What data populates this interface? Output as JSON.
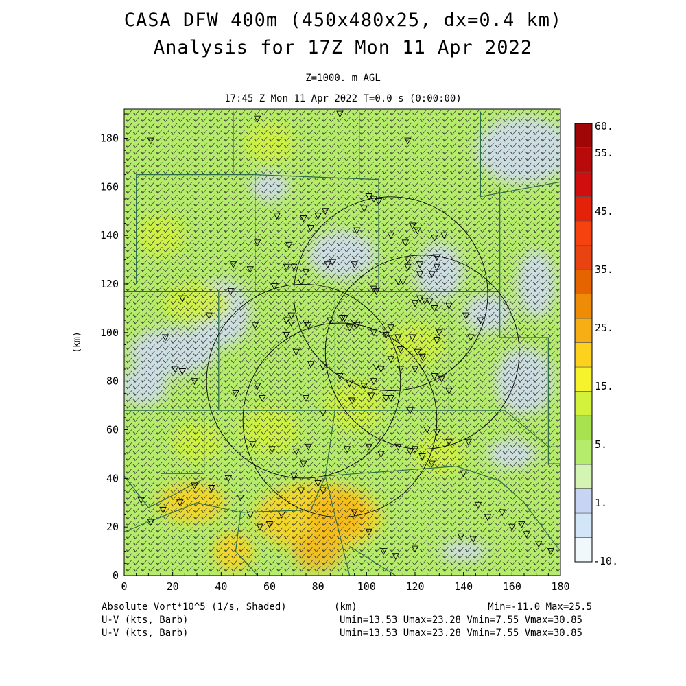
{
  "header": {
    "title_line1": "CASA DFW 400m (450x480x25, dx=0.4 km)",
    "title_line2": "Analysis for 17Z Mon 11 Apr 2022",
    "level": "Z=1000. m AGL",
    "time": "17:45 Z Mon 11 Apr 2022    T=0.0 s (0:00:00)"
  },
  "axes": {
    "x_ticks": [
      "0",
      "20",
      "40",
      "60",
      "80",
      "100",
      "120",
      "140",
      "160",
      "180"
    ],
    "y_ticks": [
      "0",
      "20",
      "40",
      "60",
      "80",
      "100",
      "120",
      "140",
      "160",
      "180"
    ],
    "x_label": "(km)",
    "y_label": "(km)",
    "x_range": [
      0,
      180
    ],
    "y_range": [
      0,
      192
    ]
  },
  "colorbar": {
    "labels": [
      "60.",
      "55.",
      "45.",
      "35.",
      "25.",
      "15.",
      "5.",
      "1.",
      "-10."
    ],
    "colors": [
      "#f0f8fc",
      "#d2e6f8",
      "#c8d4f4",
      "#d4f4b4",
      "#b6ec6c",
      "#a8e24e",
      "#d2f23c",
      "#f6f32c",
      "#fcd21e",
      "#f6ae14",
      "#ee8c08",
      "#e56400",
      "#e84412",
      "#f5420e",
      "#e4220a",
      "#d00e0e",
      "#b80a0a",
      "#a00606"
    ]
  },
  "footer": {
    "field_label": "Absolute Vort*10^5 (1/s, Shaded)",
    "field_unit": "(km)",
    "field_stats": "Min=-11.0 Max=25.5",
    "vector1_label": "U-V (kts, Barb)",
    "vector1_stats": "Umin=13.53 Umax=23.28  Vmin=7.55  Vmax=30.85",
    "vector2_label": "U-V (kts, Barb)",
    "vector2_stats": "Umin=13.53 Umax=23.28  Vmin=7.55  Vmax=30.85"
  },
  "colors": {
    "field_base": "#b6ec6c",
    "field_low": "#d0dcf6",
    "field_mid": "#d2f23c",
    "field_high": "#fcd21e",
    "field_peak": "#f4b820",
    "county_lines": "#2e6e4a",
    "radar_rings": "#000000",
    "barbs": "#333333"
  },
  "map": {
    "radar_ranges_km": 40,
    "radars": [
      {
        "x_km": 74,
        "y_km": 80
      },
      {
        "x_km": 89,
        "y_km": 64
      },
      {
        "x_km": 110,
        "y_km": 116
      },
      {
        "x_km": 123,
        "y_km": 92
      }
    ],
    "county_lines_km": [
      [
        [
          0,
          117
        ],
        [
          30,
          117
        ],
        [
          134,
          117
        ]
      ],
      [
        [
          5,
          120
        ],
        [
          5,
          165
        ],
        [
          54,
          165
        ]
      ],
      [
        [
          54,
          165
        ],
        [
          105,
          163
        ]
      ],
      [
        [
          105,
          163
        ],
        [
          105,
          117
        ]
      ],
      [
        [
          54,
          166
        ],
        [
          54,
          118
        ]
      ],
      [
        [
          45,
          191
        ],
        [
          45,
          166
        ]
      ],
      [
        [
          97,
          191
        ],
        [
          97,
          163
        ]
      ],
      [
        [
          147,
          191
        ],
        [
          147,
          156
        ],
        [
          180,
          162
        ]
      ],
      [
        [
          155,
          160
        ],
        [
          155,
          98
        ]
      ],
      [
        [
          134,
          117
        ],
        [
          155,
          117
        ]
      ],
      [
        [
          39,
          117
        ],
        [
          39,
          68
        ]
      ],
      [
        [
          0,
          68
        ],
        [
          39,
          68
        ]
      ],
      [
        [
          39,
          68
        ],
        [
          134,
          68
        ]
      ],
      [
        [
          87,
          117
        ],
        [
          87,
          68
        ]
      ],
      [
        [
          134,
          117
        ],
        [
          134,
          68
        ]
      ],
      [
        [
          134,
          68
        ],
        [
          157,
          68
        ],
        [
          175,
          53
        ],
        [
          180,
          53
        ]
      ],
      [
        [
          155,
          98
        ],
        [
          175,
          98
        ],
        [
          175,
          46
        ],
        [
          180,
          46
        ]
      ],
      [
        [
          0,
          41
        ],
        [
          10,
          28
        ],
        [
          20,
          33
        ],
        [
          33,
          40
        ]
      ],
      [
        [
          33,
          42
        ],
        [
          33,
          68
        ]
      ],
      [
        [
          15,
          42
        ],
        [
          33,
          42
        ]
      ],
      [
        [
          0,
          18
        ],
        [
          30,
          30
        ],
        [
          48,
          26
        ],
        [
          77,
          27
        ],
        [
          83,
          41
        ]
      ],
      [
        [
          83,
          41
        ],
        [
          87,
          68
        ]
      ],
      [
        [
          83,
          41
        ],
        [
          137,
          45
        ],
        [
          155,
          39
        ],
        [
          165,
          30
        ],
        [
          180,
          10
        ]
      ],
      [
        [
          83,
          41
        ],
        [
          93,
          0
        ]
      ],
      [
        [
          93,
          12
        ],
        [
          112,
          0
        ]
      ],
      [
        [
          48,
          26
        ],
        [
          46,
          10
        ],
        [
          55,
          0
        ]
      ]
    ],
    "markers": [
      [
        55,
        188
      ],
      [
        89,
        190
      ],
      [
        117,
        179
      ],
      [
        11,
        179
      ],
      [
        63,
        148
      ],
      [
        96,
        142
      ],
      [
        74,
        147
      ],
      [
        55,
        137
      ],
      [
        68,
        136
      ],
      [
        45,
        128
      ],
      [
        52,
        126
      ],
      [
        70,
        127
      ],
      [
        75,
        125
      ],
      [
        73,
        121
      ],
      [
        67,
        127
      ],
      [
        44,
        117
      ],
      [
        62,
        119
      ],
      [
        24,
        114
      ],
      [
        35,
        107
      ],
      [
        54,
        103
      ],
      [
        67,
        105
      ],
      [
        69,
        104
      ],
      [
        69,
        107
      ],
      [
        85,
        105
      ],
      [
        95,
        104
      ],
      [
        96,
        103
      ],
      [
        93,
        102
      ],
      [
        103,
        100
      ],
      [
        108,
        99
      ],
      [
        110,
        102
      ],
      [
        113,
        98
      ],
      [
        114,
        93
      ],
      [
        119,
        98
      ],
      [
        121,
        92
      ],
      [
        123,
        90
      ],
      [
        129,
        97
      ],
      [
        130,
        100
      ],
      [
        143,
        98
      ],
      [
        147,
        105
      ],
      [
        120,
        112
      ],
      [
        122,
        114
      ],
      [
        124,
        113
      ],
      [
        126,
        113
      ],
      [
        128,
        110
      ],
      [
        134,
        111
      ],
      [
        141,
        107
      ],
      [
        113,
        121
      ],
      [
        115,
        121
      ],
      [
        122,
        124
      ],
      [
        127,
        124
      ],
      [
        129,
        127
      ],
      [
        129,
        131
      ],
      [
        117,
        130
      ],
      [
        122,
        128
      ],
      [
        128,
        139
      ],
      [
        132,
        140
      ],
      [
        117,
        127
      ],
      [
        116,
        137
      ],
      [
        121,
        142
      ],
      [
        119,
        144
      ],
      [
        110,
        140
      ],
      [
        105,
        154
      ],
      [
        103,
        155
      ],
      [
        101,
        156
      ],
      [
        99,
        151
      ],
      [
        83,
        150
      ],
      [
        80,
        148
      ],
      [
        77,
        143
      ],
      [
        84,
        128
      ],
      [
        86,
        129
      ],
      [
        95,
        128
      ],
      [
        103,
        118
      ],
      [
        104,
        117
      ],
      [
        91,
        106
      ],
      [
        90,
        106
      ],
      [
        75,
        104
      ],
      [
        76,
        103
      ],
      [
        67,
        99
      ],
      [
        71,
        92
      ],
      [
        77,
        87
      ],
      [
        82,
        86
      ],
      [
        89,
        82
      ],
      [
        93,
        79
      ],
      [
        99,
        78
      ],
      [
        103,
        80
      ],
      [
        104,
        86
      ],
      [
        106,
        85
      ],
      [
        110,
        89
      ],
      [
        114,
        85
      ],
      [
        120,
        85
      ],
      [
        123,
        86
      ],
      [
        128,
        82
      ],
      [
        131,
        81
      ],
      [
        134,
        76
      ],
      [
        17,
        98
      ],
      [
        21,
        85
      ],
      [
        24,
        84
      ],
      [
        29,
        80
      ],
      [
        46,
        75
      ],
      [
        55,
        78
      ],
      [
        57,
        73
      ],
      [
        75,
        73
      ],
      [
        82,
        67
      ],
      [
        94,
        72
      ],
      [
        102,
        74
      ],
      [
        108,
        73
      ],
      [
        110,
        73
      ],
      [
        118,
        68
      ],
      [
        125,
        60
      ],
      [
        129,
        59
      ],
      [
        134,
        55
      ],
      [
        140,
        42
      ],
      [
        146,
        29
      ],
      [
        150,
        24
      ],
      [
        156,
        26
      ],
      [
        160,
        20
      ],
      [
        166,
        17
      ],
      [
        171,
        13
      ],
      [
        176,
        10
      ],
      [
        144,
        15
      ],
      [
        120,
        11
      ],
      [
        112,
        8
      ],
      [
        107,
        10
      ],
      [
        101,
        18
      ],
      [
        95,
        26
      ],
      [
        82,
        35
      ],
      [
        74,
        46
      ],
      [
        53,
        54
      ],
      [
        61,
        52
      ],
      [
        71,
        51
      ],
      [
        70,
        41
      ],
      [
        80,
        38
      ],
      [
        73,
        35
      ],
      [
        65,
        25
      ],
      [
        60,
        21
      ],
      [
        56,
        20
      ],
      [
        52,
        25
      ],
      [
        48,
        32
      ],
      [
        43,
        40
      ],
      [
        36,
        36
      ],
      [
        29,
        37
      ],
      [
        23,
        30
      ],
      [
        16,
        27
      ],
      [
        11,
        22
      ],
      [
        7,
        31
      ],
      [
        76,
        53
      ],
      [
        92,
        52
      ],
      [
        101,
        53
      ],
      [
        106,
        50
      ],
      [
        113,
        53
      ],
      [
        118,
        51
      ],
      [
        120,
        52
      ],
      [
        123,
        49
      ],
      [
        127,
        46
      ],
      [
        142,
        55
      ],
      [
        139,
        16
      ],
      [
        164,
        21
      ]
    ]
  }
}
